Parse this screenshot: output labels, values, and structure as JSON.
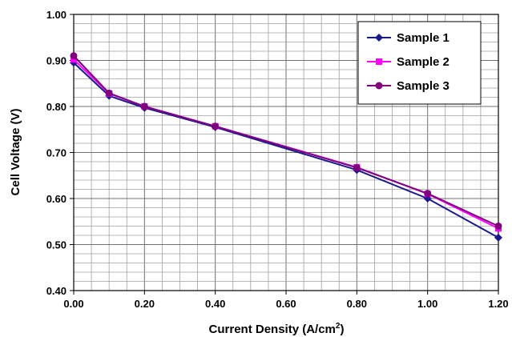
{
  "chart_data": {
    "type": "line",
    "title": "",
    "xlabel": "Current Density (A/cm",
    "xlabel_sup": "2",
    "xlabel_tail": ")",
    "ylabel": "Cell Voltage (V)",
    "xlim": [
      0,
      1.2
    ],
    "ylim": [
      0.4,
      1.0
    ],
    "x_ticks": [
      "0.00",
      "0.20",
      "0.40",
      "0.60",
      "0.80",
      "1.00",
      "1.20"
    ],
    "y_ticks": [
      "0.40",
      "0.50",
      "0.60",
      "0.70",
      "0.80",
      "0.90",
      "1.00"
    ],
    "grid": true,
    "legend_position": "top-right",
    "x": [
      0,
      0.1,
      0.2,
      0.4,
      0.8,
      1.0,
      1.2
    ],
    "series": [
      {
        "name": "Sample 1",
        "color": "#1a1a8c",
        "marker": "diamond",
        "values": [
          0.895,
          0.823,
          0.797,
          0.755,
          0.662,
          0.6,
          0.515
        ]
      },
      {
        "name": "Sample 2",
        "color": "#ff00ff",
        "marker": "square",
        "values": [
          0.902,
          0.828,
          0.8,
          0.757,
          0.668,
          0.61,
          0.535
        ]
      },
      {
        "name": "Sample 3",
        "color": "#800080",
        "marker": "circle",
        "values": [
          0.91,
          0.829,
          0.8,
          0.757,
          0.667,
          0.611,
          0.54
        ]
      }
    ]
  }
}
